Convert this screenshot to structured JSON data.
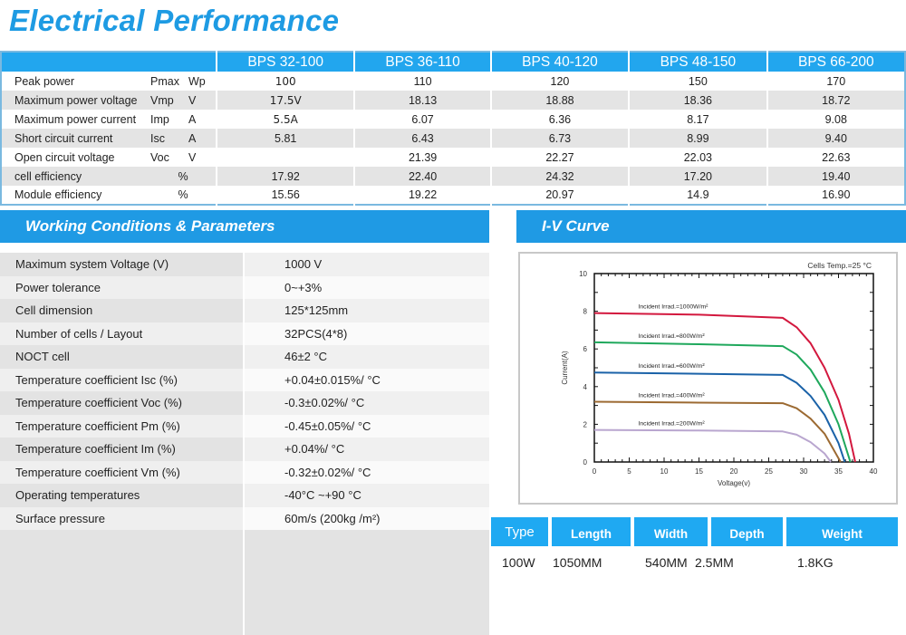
{
  "title": "Electrical Performance",
  "performance": {
    "models": [
      "BPS 32-100",
      "BPS 36-110",
      "BPS 40-120",
      "BPS 48-150",
      "BPS 66-200"
    ],
    "rows": [
      {
        "label": "Peak power",
        "symbol": "Pmax",
        "unit": "Wp",
        "values": [
          "100",
          "110",
          "120",
          "150",
          "170"
        ]
      },
      {
        "label": "Maximum power voltage",
        "symbol": "Vmp",
        "unit": "V",
        "values": [
          "17.5V",
          "18.13",
          "18.88",
          "18.36",
          "18.72"
        ]
      },
      {
        "label": "Maximum power current",
        "symbol": "Imp",
        "unit": "A",
        "values": [
          "5.5A",
          "6.07",
          "6.36",
          "8.17",
          "9.08"
        ]
      },
      {
        "label": "Short circuit current",
        "symbol": "Isc",
        "unit": "A",
        "values": [
          "5.81",
          "6.43",
          "6.73",
          "8.99",
          "9.40"
        ]
      },
      {
        "label": "Open circuit voltage",
        "symbol": "Voc",
        "unit": "V",
        "values": [
          "",
          "21.39",
          "22.27",
          "22.03",
          "22.63"
        ]
      },
      {
        "label": "cell efficiency",
        "symbol": "",
        "unit": "%",
        "values": [
          "17.92",
          "22.40",
          "24.32",
          "17.20",
          "19.40"
        ]
      },
      {
        "label": "Module efficiency",
        "symbol": "",
        "unit": "%",
        "values": [
          "15.56",
          "19.22",
          "20.97",
          "14.9",
          "16.90"
        ]
      }
    ]
  },
  "working": {
    "heading": "Working Conditions & Parameters",
    "rows": [
      {
        "label": "Maximum system Voltage (V)",
        "value": "1000 V"
      },
      {
        "label": "Power tolerance",
        "value": "0~+3%"
      },
      {
        "label": "Cell dimension",
        "value": "125*125mm"
      },
      {
        "label": "Number of cells / Layout",
        "value": "32PCS(4*8)"
      },
      {
        "label": "NOCT cell",
        "value": "46±2 °C"
      },
      {
        "label": "Temperature coefficient Isc (%)",
        "value": "+0.04±0.015%/ °C"
      },
      {
        "label": "Temperature coefficient Voc (%)",
        "value": "-0.3±0.02%/ °C"
      },
      {
        "label": "Temperature coefficient Pm (%)",
        "value": "-0.45±0.05%/ °C"
      },
      {
        "label": "Temperature coefficient Im (%)",
        "value": "+0.04%/ °C"
      },
      {
        "label": "Temperature coefficient Vm (%)",
        "value": "-0.32±0.02%/ °C"
      },
      {
        "label": "Operating temperatures",
        "value": "-40°C ~+90 °C"
      },
      {
        "label": "Surface pressure",
        "value": "60m/s (200kg /m²)"
      }
    ]
  },
  "iv_heading": "I-V Curve",
  "chart_data": {
    "type": "line",
    "title": "Cells Temp.=25 °C",
    "xlabel": "Voltage(v)",
    "ylabel": "Current(A)",
    "xlim": [
      0,
      40
    ],
    "ylim": [
      0,
      10
    ],
    "xticks": [
      0,
      5,
      10,
      15,
      20,
      25,
      30,
      35,
      40
    ],
    "yticks": [
      0,
      2,
      4,
      6,
      8,
      10
    ],
    "series": [
      {
        "name": "Incident Irrad.=1000W/m²",
        "color": "#d3183e",
        "points": [
          [
            0,
            7.9
          ],
          [
            15,
            7.82
          ],
          [
            27,
            7.65
          ],
          [
            29,
            7.15
          ],
          [
            31,
            6.3
          ],
          [
            33,
            5.0
          ],
          [
            35,
            3.3
          ],
          [
            36.5,
            1.5
          ],
          [
            37.4,
            0
          ]
        ]
      },
      {
        "name": "Incident Irrad.=800W/m²",
        "color": "#1fa85c",
        "points": [
          [
            0,
            6.35
          ],
          [
            15,
            6.25
          ],
          [
            27,
            6.15
          ],
          [
            29,
            5.7
          ],
          [
            31,
            4.9
          ],
          [
            33,
            3.7
          ],
          [
            35,
            2.0
          ],
          [
            36.7,
            0
          ]
        ]
      },
      {
        "name": "Incident Irrad.=600W/m²",
        "color": "#1a62a8",
        "points": [
          [
            0,
            4.75
          ],
          [
            15,
            4.68
          ],
          [
            27,
            4.62
          ],
          [
            29,
            4.2
          ],
          [
            31,
            3.5
          ],
          [
            33,
            2.5
          ],
          [
            35,
            1.0
          ],
          [
            35.9,
            0
          ]
        ]
      },
      {
        "name": "Incident Irrad.=400W/m²",
        "color": "#9c6a32",
        "points": [
          [
            0,
            3.2
          ],
          [
            15,
            3.15
          ],
          [
            27,
            3.12
          ],
          [
            29,
            2.85
          ],
          [
            31,
            2.3
          ],
          [
            33,
            1.5
          ],
          [
            35.3,
            0
          ]
        ]
      },
      {
        "name": "Incident Irrad.=200W/m²",
        "color": "#b9a6cf",
        "points": [
          [
            0,
            1.7
          ],
          [
            15,
            1.67
          ],
          [
            27,
            1.62
          ],
          [
            29,
            1.45
          ],
          [
            31,
            1.05
          ],
          [
            33,
            0.45
          ],
          [
            33.9,
            0
          ]
        ]
      }
    ]
  },
  "dimensions": {
    "headers": [
      "Type",
      "Length",
      "Width",
      "Depth",
      "Weight"
    ],
    "values": [
      "100W",
      "1050MM",
      "540MM",
      "2.5MM",
      "1.8KG"
    ]
  }
}
